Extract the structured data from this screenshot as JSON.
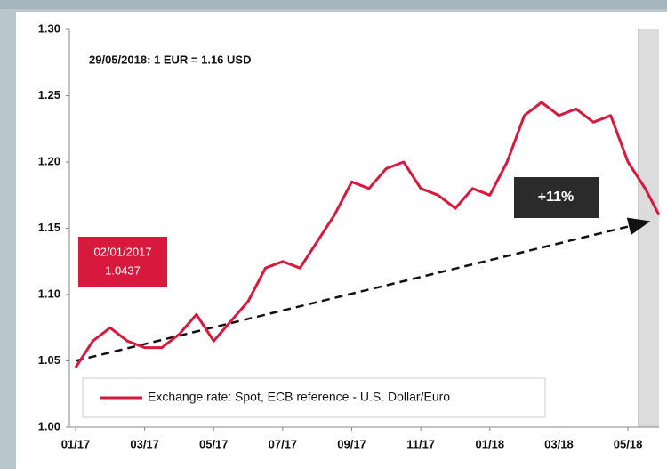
{
  "chart_data": {
    "type": "line",
    "title": "29/05/2018:  1 EUR = 1.16 USD",
    "xlim": [
      0,
      16.9
    ],
    "xticks": [
      {
        "value": 0,
        "label": "01/17"
      },
      {
        "value": 2,
        "label": "03/17"
      },
      {
        "value": 4,
        "label": "05/17"
      },
      {
        "value": 6,
        "label": "07/17"
      },
      {
        "value": 8,
        "label": "09/17"
      },
      {
        "value": 10,
        "label": "11/17"
      },
      {
        "value": 12,
        "label": "01/18"
      },
      {
        "value": 14,
        "label": "03/18"
      },
      {
        "value": 16,
        "label": "05/18"
      }
    ],
    "ylim": [
      1.0,
      1.3
    ],
    "yticks": [
      {
        "value": 1.0,
        "label": "1.00"
      },
      {
        "value": 1.05,
        "label": "1.05"
      },
      {
        "value": 1.1,
        "label": "1.10"
      },
      {
        "value": 1.15,
        "label": "1.15"
      },
      {
        "value": 1.2,
        "label": "1.20"
      },
      {
        "value": 1.25,
        "label": "1.25"
      },
      {
        "value": 1.3,
        "label": "1.30"
      }
    ],
    "series": [
      {
        "name": "Exchange rate: Spot, ECB reference - U.S. Dollar/Euro",
        "color": "#d7193d",
        "x": [
          0,
          0.5,
          1,
          1.5,
          2,
          2.5,
          3,
          3.5,
          4,
          4.5,
          5,
          5.5,
          6,
          6.5,
          7,
          7.5,
          8,
          8.5,
          9,
          9.5,
          10,
          10.5,
          11,
          11.5,
          12,
          12.5,
          13,
          13.5,
          14,
          14.5,
          15,
          15.5,
          16,
          16.5,
          16.9
        ],
        "values": [
          1.045,
          1.065,
          1.075,
          1.065,
          1.06,
          1.06,
          1.07,
          1.085,
          1.065,
          1.08,
          1.095,
          1.12,
          1.125,
          1.12,
          1.14,
          1.16,
          1.185,
          1.18,
          1.195,
          1.2,
          1.18,
          1.175,
          1.165,
          1.18,
          1.175,
          1.2,
          1.235,
          1.245,
          1.235,
          1.24,
          1.23,
          1.235,
          1.2,
          1.18,
          1.16
        ]
      }
    ],
    "start_label": {
      "date": "02/01/2017",
      "value": "1.0437"
    },
    "change_label": "+11%",
    "trend_start": 1.05,
    "trend_end": 1.155,
    "shaded_from": 16.3
  }
}
